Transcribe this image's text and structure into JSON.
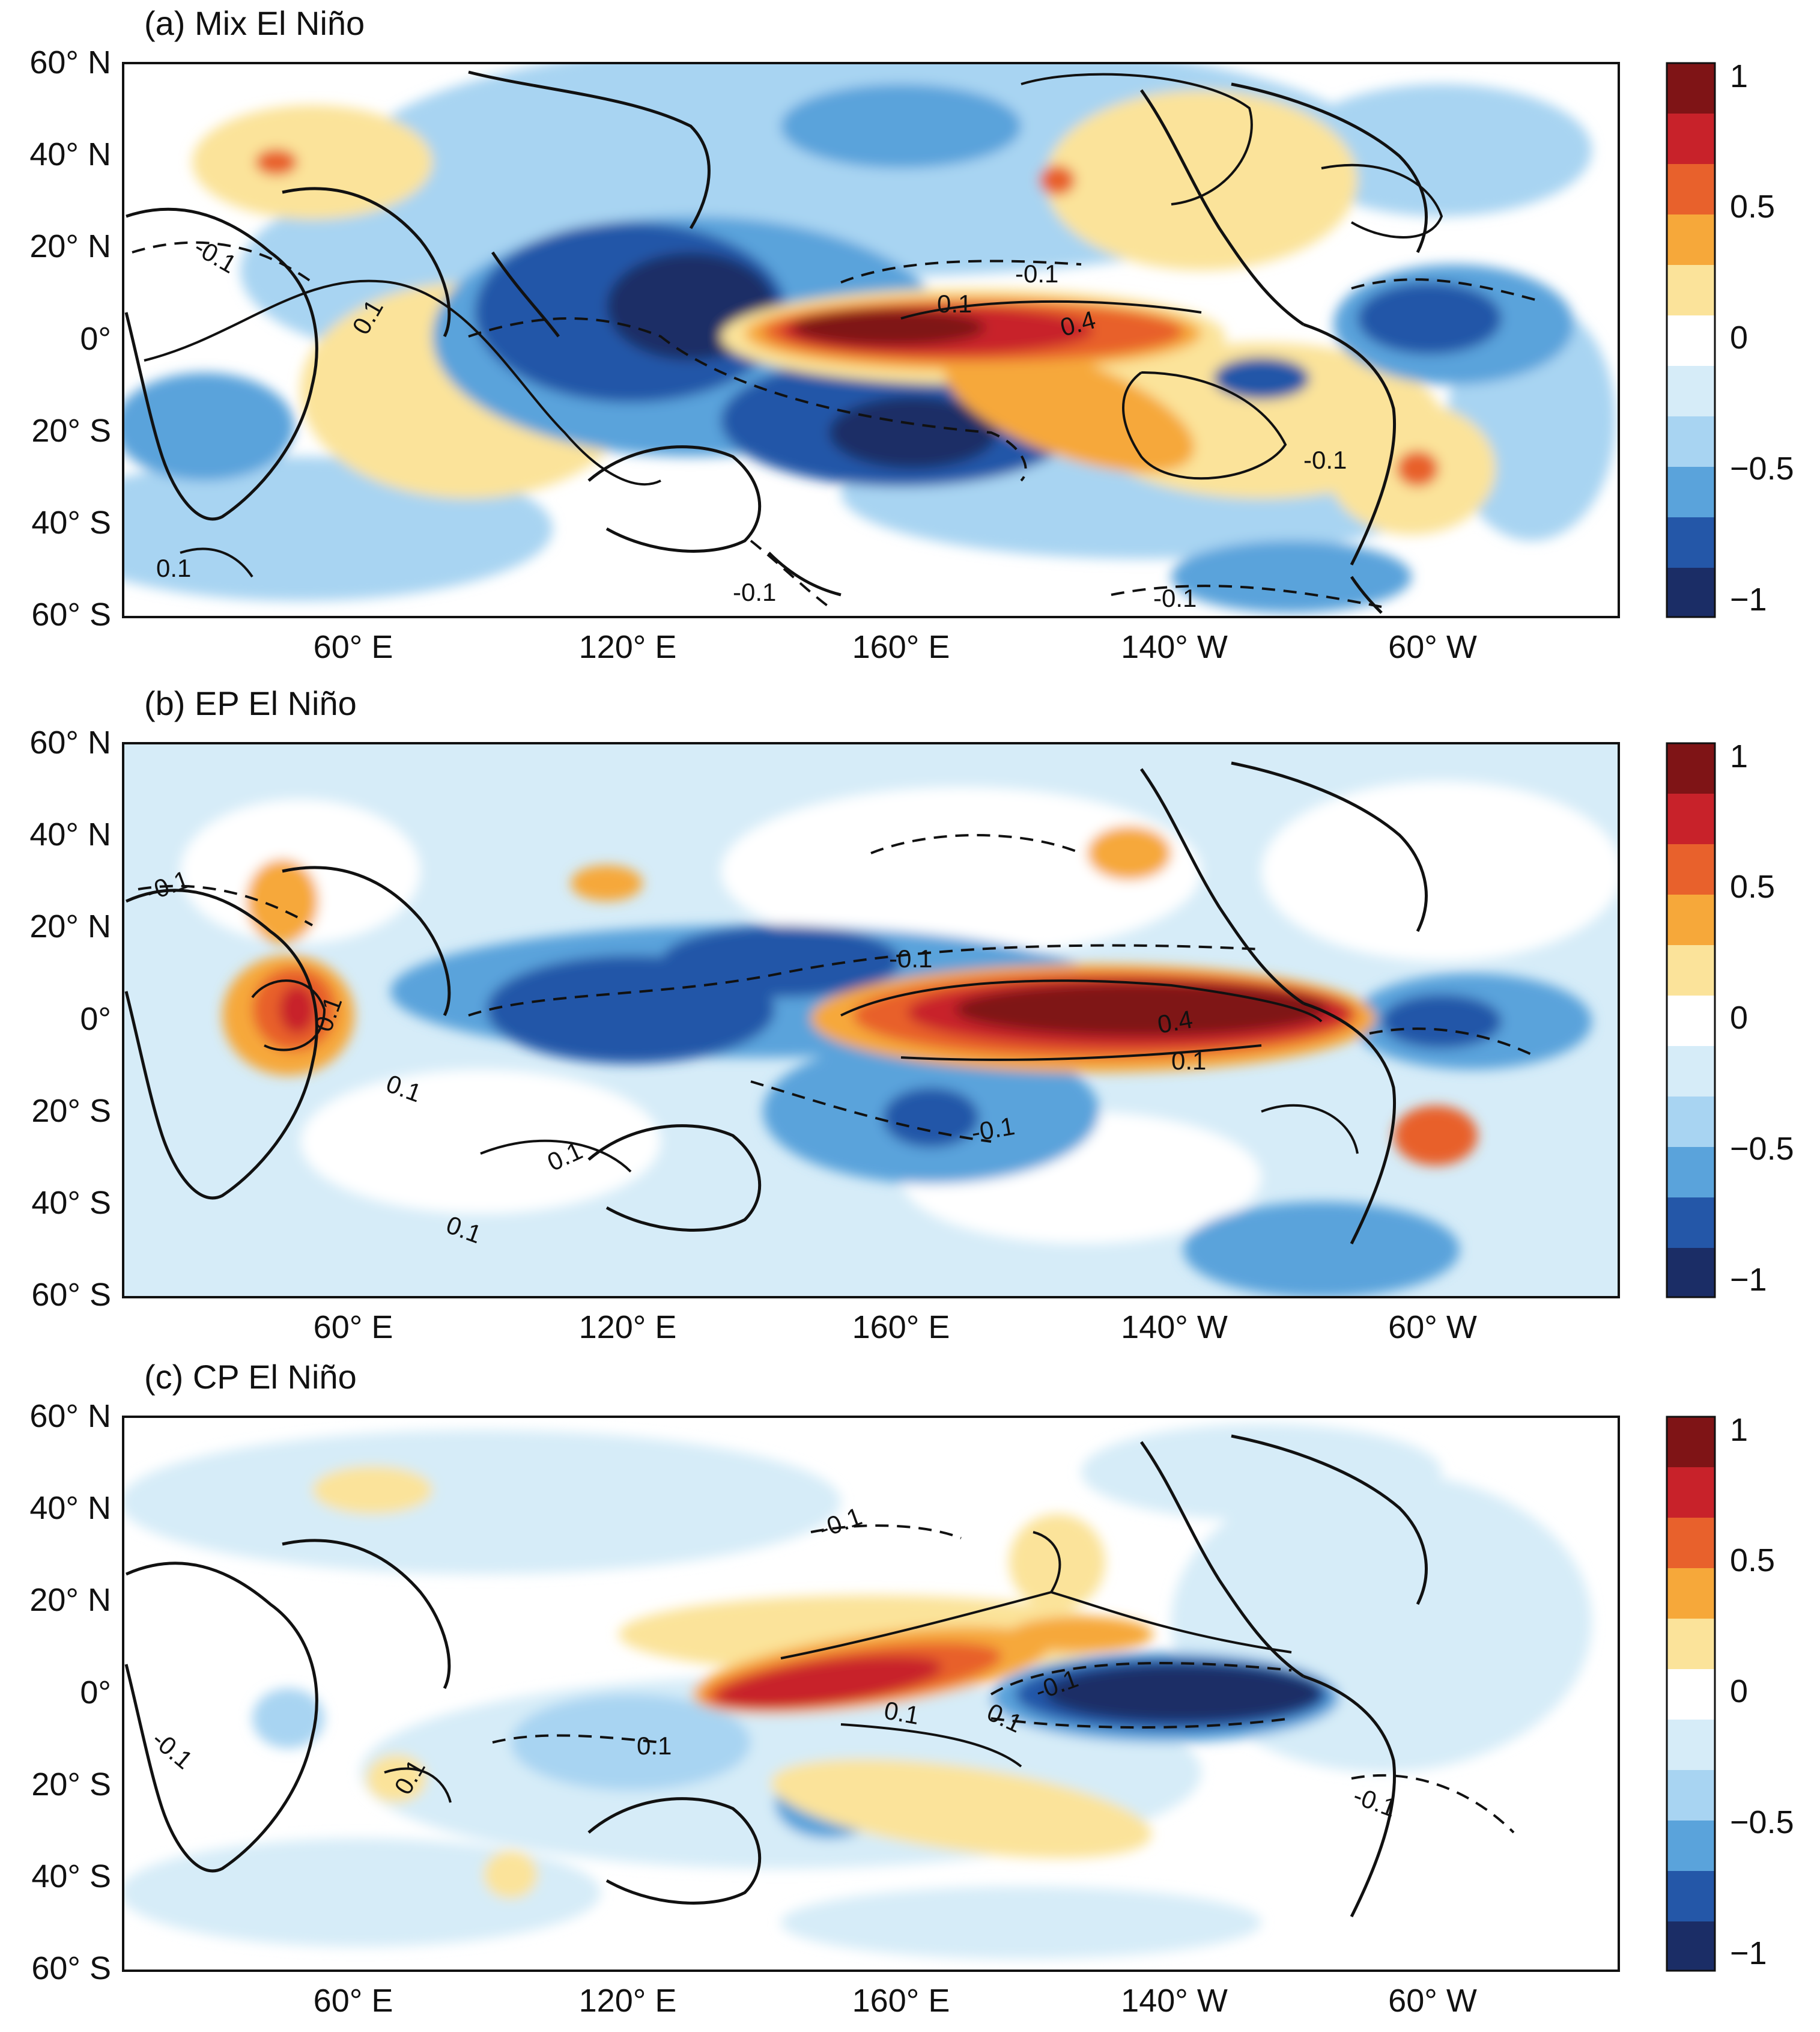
{
  "figure": {
    "panels": [
      {
        "id": "a",
        "title": "(a) Mix El Niño",
        "y_ticks": [
          "60° N",
          "40° N",
          "20° N",
          "0°",
          "20° S",
          "40° S",
          "60° S"
        ],
        "x_ticks": [
          "60° E",
          "120° E",
          "160° E",
          "140° W",
          "60° W"
        ],
        "colorbar_labels": [
          "1",
          "0.5",
          "0",
          "−0.5",
          "−1"
        ],
        "contour_labels": [
          "0.1",
          "-0.1",
          "0.4"
        ],
        "pattern": "mix"
      },
      {
        "id": "b",
        "title": "(b) EP El Niño",
        "y_ticks": [
          "60° N",
          "40° N",
          "20° N",
          "0°",
          "20° S",
          "40° S",
          "60° S"
        ],
        "x_ticks": [
          "60° E",
          "120° E",
          "160° E",
          "140° W",
          "60° W"
        ],
        "colorbar_labels": [
          "1",
          "0.5",
          "0",
          "−0.5",
          "−1"
        ],
        "contour_labels": [
          "0.1",
          "-0.1",
          "0.4"
        ],
        "pattern": "ep"
      },
      {
        "id": "c",
        "title": "(c) CP El Niño",
        "y_ticks": [
          "60° N",
          "40° N",
          "20° N",
          "0°",
          "20° S",
          "40° S",
          "60° S"
        ],
        "x_ticks": [
          "60° E",
          "120° E",
          "160° E",
          "140° W",
          "60° W"
        ],
        "colorbar_labels": [
          "1",
          "0.5",
          "0",
          "−0.5",
          "−1"
        ],
        "contour_labels": [
          "0.1",
          "-0.1"
        ],
        "pattern": "cp"
      }
    ],
    "colorbar_colors": [
      "#7f1416",
      "#c8222a",
      "#e8612c",
      "#f6a83a",
      "#fbe39a",
      "#ffffff",
      "#d6ecf8",
      "#a8d4f2",
      "#5aa3db",
      "#2457a8",
      "#1b2d66"
    ]
  }
}
